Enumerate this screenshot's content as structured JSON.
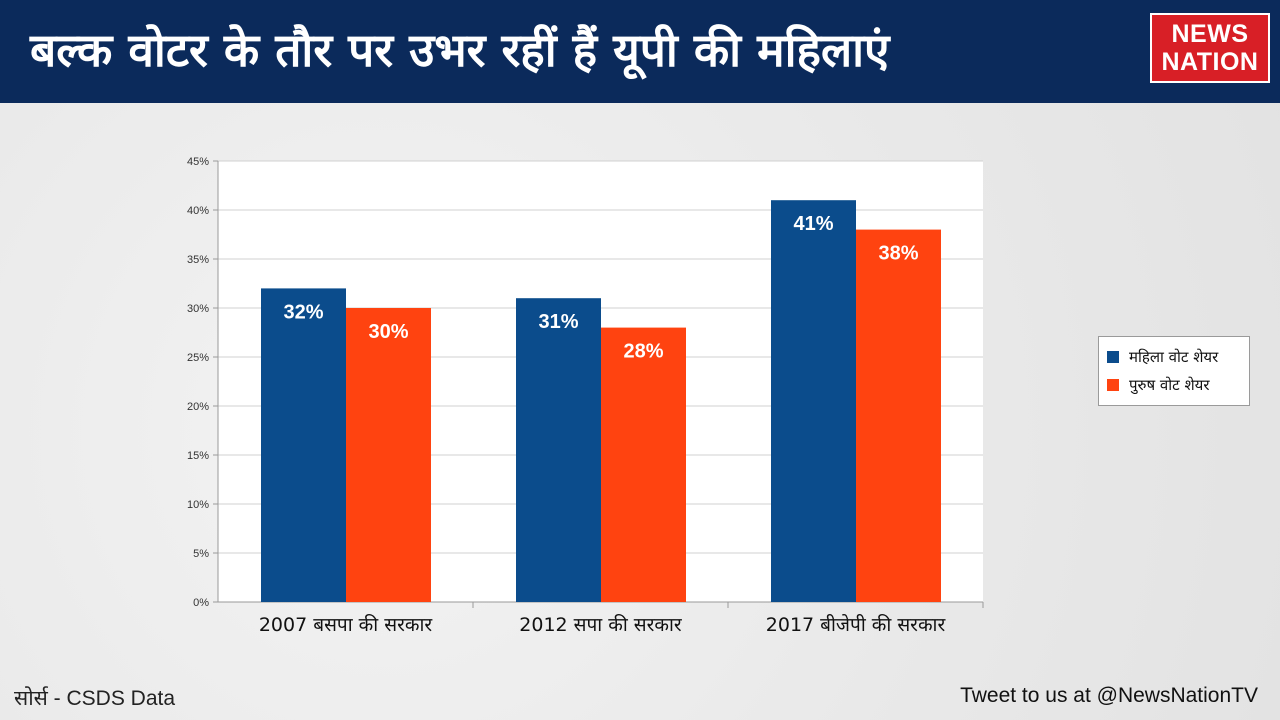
{
  "header": {
    "title": "बल्क वोटर के तौर पर उभर रहीं हैं यूपी की महिलाएं",
    "logo_line1": "NEWS",
    "logo_line2": "NATION"
  },
  "colors": {
    "header_bg": "#0b2a5b",
    "women": "#0b4c8c",
    "men": "#ff4310",
    "logo_red": "#d81f26"
  },
  "chart_data": {
    "type": "bar",
    "title": "",
    "xlabel": "",
    "ylabel": "",
    "ylim": [
      0,
      45
    ],
    "yticks": [
      0,
      5,
      10,
      15,
      20,
      25,
      30,
      35,
      40,
      45
    ],
    "ytick_labels": [
      "0%",
      "5%",
      "10%",
      "15%",
      "20%",
      "25%",
      "30%",
      "35%",
      "40%",
      "45%"
    ],
    "grid": true,
    "legend_position": "right",
    "categories": [
      "2007 बसपा की सरकार",
      "2012 सपा की सरकार",
      "2017 बीजेपी की सरकार"
    ],
    "series": [
      {
        "name": "महिला वोट शेयर",
        "values": [
          32,
          31,
          41
        ],
        "labels": [
          "32%",
          "31%",
          "41%"
        ],
        "color": "#0b4c8c"
      },
      {
        "name": "पुरुष वोट शेयर",
        "values": [
          30,
          28,
          38
        ],
        "labels": [
          "30%",
          "28%",
          "38%"
        ],
        "color": "#ff4310"
      }
    ]
  },
  "legend": {
    "items": [
      {
        "label": "महिला वोट शेयर",
        "color": "#0b4c8c"
      },
      {
        "label": "पुरुष वोट शेयर",
        "color": "#ff4310"
      }
    ]
  },
  "footer": {
    "source": "सोर्स - CSDS Data",
    "tweet": "Tweet to us at @NewsNationTV"
  }
}
